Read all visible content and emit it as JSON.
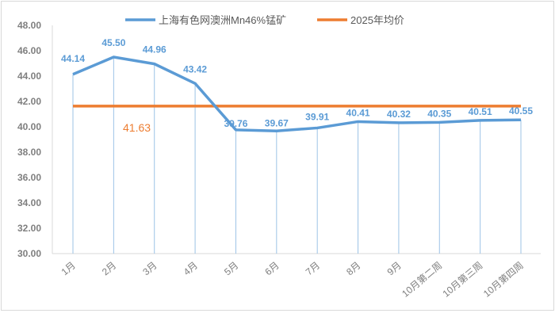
{
  "chart_data": {
    "type": "line",
    "title": "",
    "categories": [
      "1月",
      "2月",
      "3月",
      "4月",
      "5月",
      "6月",
      "7月",
      "8月",
      "9月",
      "10月第二周",
      "10月第三周",
      "10月第四周"
    ],
    "series": [
      {
        "name": "上海有色网澳洲Mn46%锰矿",
        "color": "#5b9bd5",
        "values": [
          44.14,
          45.5,
          44.96,
          43.42,
          39.76,
          39.67,
          39.91,
          40.41,
          40.32,
          40.35,
          40.51,
          40.55
        ],
        "labels": [
          "44.14",
          "45.50",
          "44.96",
          "43.42",
          "39.76",
          "39.67",
          "39.91",
          "40.41",
          "40.32",
          "40.35",
          "40.51",
          "40.55"
        ]
      },
      {
        "name": "2025年均价",
        "color": "#ed7d31",
        "value": 41.63,
        "label": "41.63"
      }
    ],
    "yticks": [
      "30.00",
      "32.00",
      "34.00",
      "36.00",
      "38.00",
      "40.00",
      "42.00",
      "44.00",
      "46.00",
      "48.00"
    ],
    "ylim": [
      30,
      48
    ],
    "legend": "top",
    "grid": false
  }
}
